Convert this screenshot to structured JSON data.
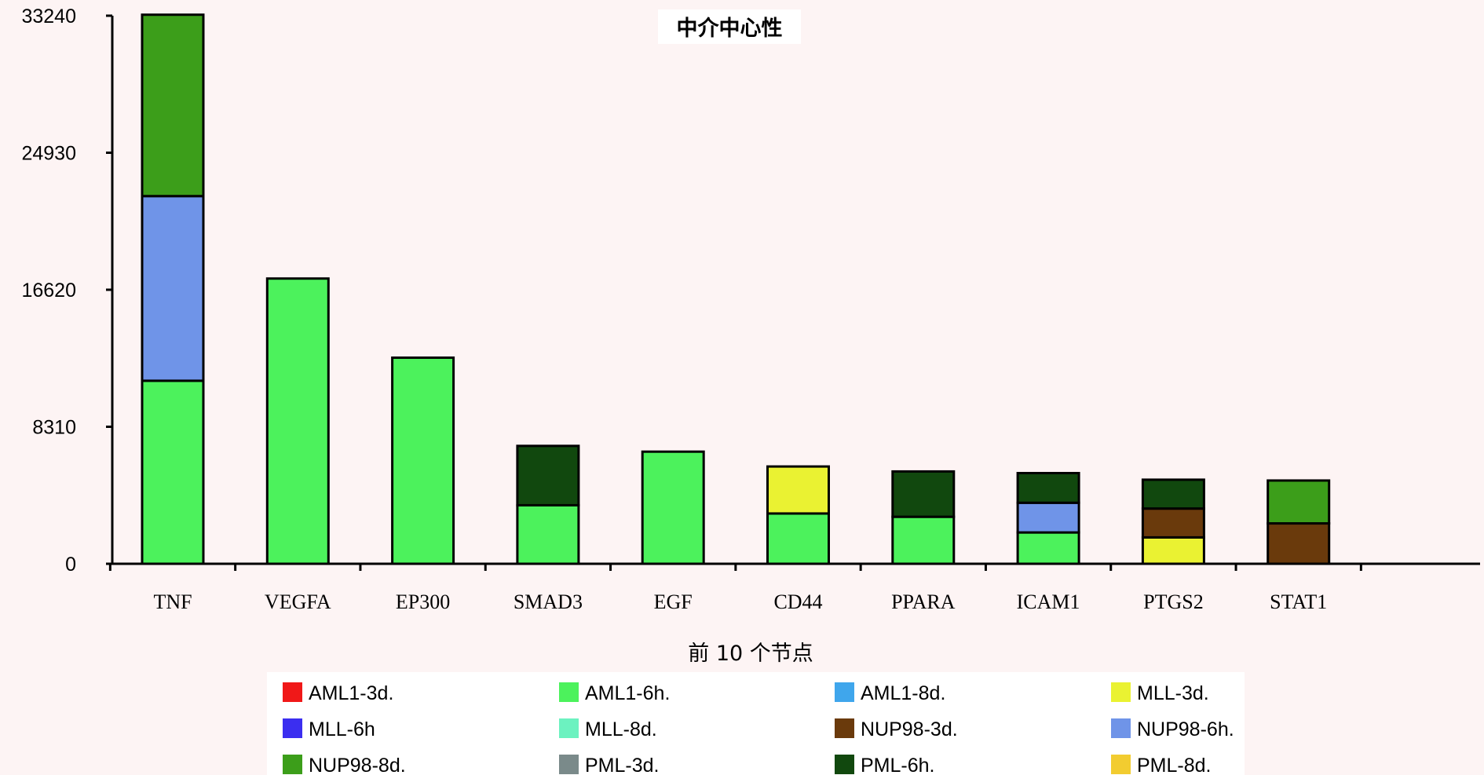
{
  "chart_data": {
    "type": "bar",
    "stacked": true,
    "title": "中介中心性",
    "xlabel": "前 10 个节点",
    "ylabel": "",
    "ylim": [
      0,
      33240
    ],
    "yticks": [
      0,
      8310,
      16620,
      24930,
      33240
    ],
    "categories": [
      "TNF",
      "VEGFA",
      "EP300",
      "SMAD3",
      "EGF",
      "CD44",
      "PPARA",
      "ICAM1",
      "PTGS2",
      "STAT1"
    ],
    "series": [
      {
        "name": "AML1-3d.",
        "color": "#f01818",
        "values": [
          0,
          0,
          0,
          0,
          0,
          0,
          0,
          0,
          0,
          0
        ]
      },
      {
        "name": "AML1-6h.",
        "color": "#4cf25c",
        "values": [
          11100,
          17300,
          12500,
          3550,
          6800,
          3050,
          2850,
          1900,
          0,
          0
        ]
      },
      {
        "name": "AML1-8d.",
        "color": "#3fa6ec",
        "values": [
          0,
          0,
          0,
          0,
          0,
          0,
          0,
          0,
          0,
          0
        ]
      },
      {
        "name": "MLL-3d.",
        "color": "#eaf232",
        "values": [
          0,
          0,
          0,
          0,
          0,
          2850,
          0,
          0,
          1600,
          0
        ]
      },
      {
        "name": "MLL-6h",
        "color": "#3b2ef0",
        "values": [
          0,
          0,
          0,
          0,
          0,
          0,
          0,
          0,
          0,
          0
        ]
      },
      {
        "name": "MLL-8d.",
        "color": "#6cf2c0",
        "values": [
          0,
          0,
          0,
          0,
          0,
          0,
          0,
          0,
          0,
          0
        ]
      },
      {
        "name": "NUP98-3d.",
        "color": "#6a3a0c",
        "values": [
          0,
          0,
          0,
          0,
          0,
          0,
          0,
          0,
          1750,
          2450
        ]
      },
      {
        "name": "NUP98-6h.",
        "color": "#6f94e8",
        "values": [
          11200,
          0,
          0,
          0,
          0,
          0,
          0,
          1800,
          0,
          0
        ]
      },
      {
        "name": "NUP98-8d.",
        "color": "#3c9e1a",
        "values": [
          11000,
          0,
          0,
          0,
          0,
          0,
          0,
          0,
          0,
          2600
        ]
      },
      {
        "name": "PML-3d.",
        "color": "#7a8a8a",
        "values": [
          0,
          0,
          0,
          0,
          0,
          0,
          0,
          0,
          0,
          0
        ]
      },
      {
        "name": "PML-6h.",
        "color": "#11480e",
        "values": [
          0,
          0,
          0,
          3600,
          0,
          0,
          2750,
          1800,
          1750,
          0
        ]
      },
      {
        "name": "PML-8d.",
        "color": "#f2cc30",
        "values": [
          0,
          0,
          0,
          0,
          0,
          0,
          0,
          0,
          0,
          0
        ]
      }
    ],
    "legend_position": "bottom",
    "grid": false
  }
}
